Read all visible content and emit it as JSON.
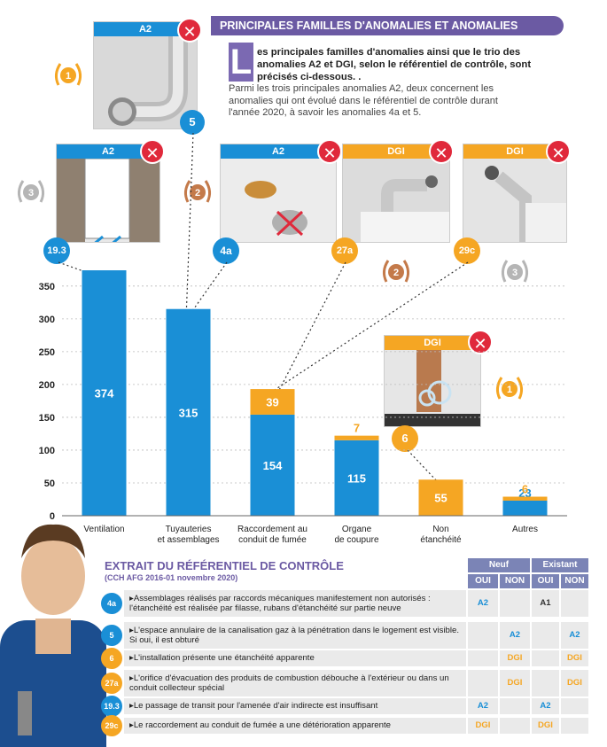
{
  "header": {
    "title": "PRINCIPALES FAMILLES D'ANOMALIES ET ANOMALIES",
    "dropcap": "L",
    "intro_bold": "es principales familles d'anomalies ainsi que le trio des anomalies A2 et DGI, selon le référentiel de contrôle, sont précisés ci-dessous. .",
    "intro_body": "Parmi les trois principales anomalies A2, deux concernent les anomalies qui ont évolué dans le référentiel de contrôle durant l'année 2020, à savoir les anomalies 4a et 5."
  },
  "photos": [
    {
      "tag": "A2",
      "code": "5",
      "rank": "1"
    },
    {
      "tag": "A2",
      "code": "19.3",
      "rank": "3"
    },
    {
      "tag": "A2",
      "code": "4a",
      "rank": "2"
    },
    {
      "tag": "DGI",
      "code": "27a",
      "rank": "2"
    },
    {
      "tag": "DGI",
      "code": "29c",
      "rank": "3"
    },
    {
      "tag": "DGI",
      "code": "6",
      "rank": "1"
    }
  ],
  "x_mark": "✕",
  "chart_data": {
    "type": "bar",
    "stacked": true,
    "categories": [
      "Ventilation",
      "Tuyauteries et assemblages",
      "Raccordement au conduit de fumée",
      "Organe de coupure",
      "Non étanchéité",
      "Autres"
    ],
    "category_lines": [
      [
        "Ventilation"
      ],
      [
        "Tuyauteries",
        "et assemblages"
      ],
      [
        "Raccordement au",
        "conduit de fumée"
      ],
      [
        "Organe",
        "de coupure"
      ],
      [
        "Non",
        "étanchéité"
      ],
      [
        "Autres"
      ]
    ],
    "series": [
      {
        "name": "A2",
        "color": "#1a8fd6",
        "values": [
          374,
          315,
          154,
          115,
          0,
          23
        ]
      },
      {
        "name": "DGI",
        "color": "#f5a623",
        "values": [
          0,
          0,
          39,
          7,
          55,
          6
        ]
      }
    ],
    "yticks": [
      0,
      50,
      100,
      150,
      200,
      250,
      300,
      350
    ],
    "ylim": [
      0,
      370
    ],
    "grid": true,
    "title": "",
    "xlabel": "",
    "ylabel": ""
  },
  "legend": {
    "title": "EXTRAIT DU RÉFÉRENTIEL DE CONTRÔLE",
    "subtitle": "(CCH AFG 2016-01 novembre 2020)",
    "col_groups": [
      "Neuf",
      "Existant"
    ],
    "cols": [
      "OUI",
      "NON",
      "OUI",
      "NON"
    ],
    "rows": [
      {
        "code": "4a",
        "kind": "blue",
        "text": "Assemblages réalisés par raccords mécaniques manifestement non autorisés : l'étanchéité est réalisée par filasse, rubans d'étanchéité sur partie neuve",
        "cells": [
          "A2",
          "",
          "A1",
          ""
        ]
      },
      {
        "code": "5",
        "kind": "blue",
        "text": "L'espace annulaire de la canalisation gaz à la pénétration dans le logement est visible. Si oui, il est obturé",
        "cells": [
          "",
          "A2",
          "",
          "A2"
        ]
      },
      {
        "code": "6",
        "kind": "orange",
        "text": "L'installation présente une étanchéité apparente",
        "cells": [
          "",
          "DGI",
          "",
          "DGI"
        ]
      },
      {
        "code": "27a",
        "kind": "orange",
        "text": "L'orifice d'évacuation des produits de combustion débouche à l'extérieur ou dans un conduit collecteur spécial",
        "cells": [
          "",
          "DGI",
          "",
          "DGI"
        ]
      },
      {
        "code": "19.3",
        "kind": "blue",
        "text": "Le passage de transit pour l'amenée d'air indirecte est insuffisant",
        "cells": [
          "A2",
          "",
          "A2",
          ""
        ]
      },
      {
        "code": "29c",
        "kind": "orange",
        "text": "Le raccordement au conduit de fumée a une détérioration apparente",
        "cells": [
          "DGI",
          "",
          "DGI",
          ""
        ]
      }
    ]
  },
  "colors": {
    "blue": "#1a8fd6",
    "orange": "#f5a623",
    "purple": "#6b5aa3",
    "red": "#e0293b"
  }
}
